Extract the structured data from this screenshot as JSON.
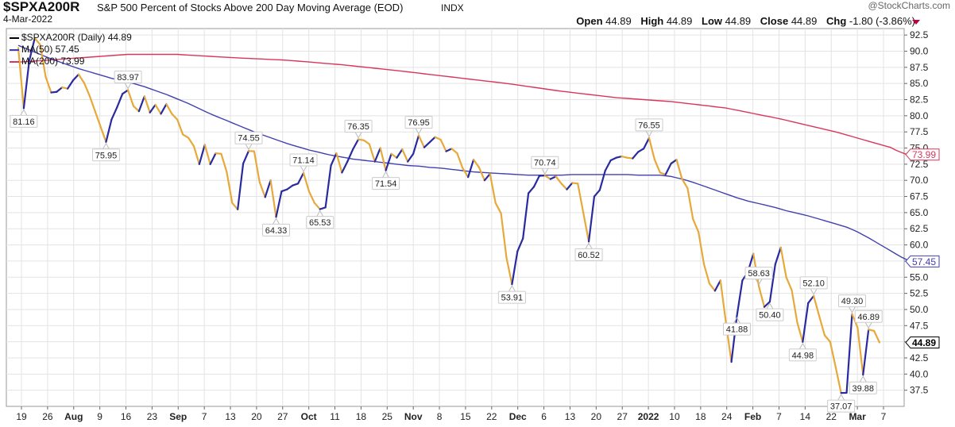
{
  "header": {
    "symbol": "$SPXA200R",
    "description": "S&P 500 Percent of Stocks Above 200 Day Moving Average (EOD)",
    "exchange": "INDX",
    "date": "4-Mar-2022",
    "watermark": "@StockCharts.com",
    "open_label": "Open",
    "open": "44.89",
    "high_label": "High",
    "high": "44.89",
    "low_label": "Low",
    "low": "44.89",
    "close_label": "Close",
    "close": "44.89",
    "chg_label": "Chg",
    "chg": "-1.80 (-3.86%)"
  },
  "legend": {
    "main": "$SPXA200R (Daily) 44.89",
    "ma50": "MA(50) 57.45",
    "ma200": "MA(200) 73.99"
  },
  "colors": {
    "up": "#2a2aa0",
    "down": "#e6a93a",
    "ma50": "#4040b0",
    "ma200": "#d8365a",
    "grid": "#e3e3e3"
  },
  "chart_data": {
    "type": "line",
    "ylim": [
      35,
      93.5
    ],
    "yticks": [
      "37.5",
      "40.0",
      "42.5",
      "45.0",
      "47.5",
      "50.0",
      "52.5",
      "55.0",
      "57.5",
      "60.0",
      "62.5",
      "65.0",
      "67.5",
      "70.0",
      "72.5",
      "75.0",
      "77.5",
      "80.0",
      "82.5",
      "85.0",
      "87.5",
      "90.0",
      "92.5"
    ],
    "x_ticks": [
      {
        "label": "19",
        "bold": false
      },
      {
        "label": "26",
        "bold": false
      },
      {
        "label": "Aug",
        "bold": true
      },
      {
        "label": "9",
        "bold": false
      },
      {
        "label": "16",
        "bold": false
      },
      {
        "label": "23",
        "bold": false
      },
      {
        "label": "Sep",
        "bold": true
      },
      {
        "label": "7",
        "bold": false
      },
      {
        "label": "13",
        "bold": false
      },
      {
        "label": "20",
        "bold": false
      },
      {
        "label": "27",
        "bold": false
      },
      {
        "label": "Oct",
        "bold": true
      },
      {
        "label": "11",
        "bold": false
      },
      {
        "label": "18",
        "bold": false
      },
      {
        "label": "25",
        "bold": false
      },
      {
        "label": "Nov",
        "bold": true
      },
      {
        "label": "8",
        "bold": false
      },
      {
        "label": "15",
        "bold": false
      },
      {
        "label": "22",
        "bold": false
      },
      {
        "label": "Dec",
        "bold": true
      },
      {
        "label": "6",
        "bold": false
      },
      {
        "label": "13",
        "bold": false
      },
      {
        "label": "20",
        "bold": false
      },
      {
        "label": "27",
        "bold": false
      },
      {
        "label": "2022",
        "bold": true
      },
      {
        "label": "10",
        "bold": false
      },
      {
        "label": "18",
        "bold": false
      },
      {
        "label": "24",
        "bold": false
      },
      {
        "label": "Feb",
        "bold": true
      },
      {
        "label": "7",
        "bold": false
      },
      {
        "label": "14",
        "bold": false
      },
      {
        "label": "22",
        "bold": false
      },
      {
        "label": "Mar",
        "bold": true
      },
      {
        "label": "7",
        "bold": false
      }
    ],
    "series": [
      {
        "name": "$SPXA200R (Daily)",
        "values": [
          90.5,
          81.16,
          88.5,
          92,
          91,
          86,
          83.6,
          83.7,
          84.4,
          84.2,
          85.5,
          86.4,
          85.1,
          83.1,
          80.7,
          78.3,
          75.95,
          79.4,
          81.3,
          83.4,
          83.97,
          81.5,
          80.7,
          83,
          80.5,
          81.7,
          80.3,
          81.8,
          80.3,
          79.4,
          77.1,
          76.6,
          75.3,
          72.5,
          75.5,
          72.5,
          74.2,
          74.1,
          71.3,
          66.5,
          65.5,
          72.6,
          74.55,
          74.5,
          69.7,
          67.4,
          70,
          64.33,
          68.3,
          68.6,
          69.2,
          69.5,
          71.14,
          68.3,
          66.5,
          65.53,
          65.8,
          72.3,
          74.2,
          71.2,
          72.9,
          74.8,
          76.35,
          76.2,
          75.6,
          72.9,
          75,
          71.54,
          74.1,
          73.5,
          74.8,
          72.9,
          74.1,
          76.95,
          75.1,
          75.9,
          76.7,
          76.3,
          74.5,
          74.9,
          74.2,
          71.9,
          70.5,
          73.2,
          72,
          70,
          71,
          66.5,
          64.9,
          58,
          53.91,
          59,
          61,
          68,
          69,
          70.7,
          70.74,
          70.2,
          70.6,
          69.5,
          68.6,
          69.6,
          69.5,
          65,
          60.52,
          67.5,
          68.5,
          71.5,
          73.1,
          73.5,
          73.7,
          73.5,
          73.4,
          74.4,
          74.9,
          76.55,
          73.2,
          71.2,
          70.9,
          72.6,
          73.2,
          70.2,
          68.8,
          64,
          62,
          57,
          54,
          52.9,
          54.5,
          48,
          41.88,
          49,
          54.5,
          55.8,
          58.63,
          53.6,
          50.4,
          51.2,
          57,
          59.6,
          55,
          53,
          48,
          44.98,
          51,
          52.1,
          49,
          46,
          45,
          41.1,
          37.07,
          37.1,
          49.3,
          47.2,
          39.88,
          46.89,
          46.69,
          44.89
        ]
      },
      {
        "name": "MA(50)",
        "values": [
          90.9,
          90.55,
          90.2,
          89.85,
          89.5,
          89.15,
          88.8,
          88.5,
          88.2,
          87.9,
          87.6,
          87.3,
          87.05,
          86.8,
          86.55,
          86.3,
          86.05,
          85.8,
          85.6,
          85.4,
          85.2,
          85,
          84.75,
          84.5,
          84.2,
          83.9,
          83.6,
          83.3,
          82.95,
          82.6,
          82.25,
          81.9,
          81.5,
          81.1,
          80.7,
          80.3,
          79.95,
          79.6,
          79.25,
          78.9,
          78.55,
          78.2,
          77.85,
          77.5,
          77.2,
          76.9,
          76.6,
          76.3,
          76,
          75.7,
          75.45,
          75.2,
          74.95,
          74.7,
          74.5,
          74.3,
          74.1,
          73.9,
          73.75,
          73.6,
          73.45,
          73.3,
          73.2,
          73.1,
          73,
          72.9,
          72.8,
          72.7,
          72.6,
          72.5,
          72.4,
          72.3,
          72.25,
          72.2,
          72.1,
          72,
          71.95,
          71.9,
          71.8,
          71.7,
          71.6,
          71.5,
          71.4,
          71.3,
          71.25,
          71.2,
          71.15,
          71.1,
          71.05,
          71,
          70.95,
          70.9,
          70.85,
          70.8,
          70.8,
          70.8,
          70.8,
          70.8,
          70.8,
          70.8,
          70.85,
          70.9,
          70.9,
          70.9,
          70.9,
          70.9,
          70.9,
          70.9,
          70.9,
          70.9,
          70.9,
          70.9,
          70.85,
          70.8,
          70.8,
          70.8,
          70.8,
          70.8,
          70.7,
          70.6,
          70.4,
          70.2,
          69.95,
          69.7,
          69.4,
          69.1,
          68.8,
          68.5,
          68.2,
          67.9,
          67.6,
          67.3,
          67.05,
          66.8,
          66.6,
          66.4,
          66.2,
          66,
          65.8,
          65.55,
          65.3,
          65.1,
          64.9,
          64.7,
          64.5,
          64.25,
          64,
          63.75,
          63.5,
          63.25,
          63,
          62.75,
          62.4,
          62,
          61.55,
          61.1,
          60.6,
          60.1,
          59.6,
          59.1,
          58.6,
          58.1,
          57.7,
          57.45
        ]
      },
      {
        "name": "MA(200)",
        "values": [
          88.3,
          88.36,
          88.42,
          88.48,
          88.54,
          88.6,
          88.66,
          88.72,
          88.78,
          88.84,
          88.9,
          88.96,
          89.02,
          89.08,
          89.14,
          89.2,
          89.26,
          89.32,
          89.38,
          89.44,
          89.5,
          89.5,
          89.5,
          89.5,
          89.5,
          89.5,
          89.5,
          89.5,
          89.5,
          89.5,
          89.45,
          89.4,
          89.35,
          89.3,
          89.25,
          89.2,
          89.15,
          89.1,
          89.05,
          89,
          88.96,
          88.92,
          88.88,
          88.84,
          88.8,
          88.76,
          88.72,
          88.68,
          88.64,
          88.6,
          88.53,
          88.46,
          88.39,
          88.32,
          88.25,
          88.18,
          88.11,
          88.04,
          87.97,
          87.9,
          87.81,
          87.72,
          87.63,
          87.54,
          87.45,
          87.36,
          87.27,
          87.18,
          87.09,
          87,
          86.9,
          86.8,
          86.7,
          86.6,
          86.5,
          86.4,
          86.3,
          86.2,
          86.1,
          86,
          85.9,
          85.8,
          85.7,
          85.6,
          85.5,
          85.4,
          85.3,
          85.2,
          85.1,
          85,
          84.88,
          84.76,
          84.64,
          84.52,
          84.4,
          84.28,
          84.16,
          84.04,
          83.92,
          83.8,
          83.7,
          83.6,
          83.5,
          83.4,
          83.3,
          83.2,
          83.1,
          83,
          82.9,
          82.8,
          82.74,
          82.68,
          82.62,
          82.56,
          82.5,
          82.44,
          82.38,
          82.32,
          82.26,
          82.2,
          82.1,
          82,
          81.9,
          81.8,
          81.7,
          81.6,
          81.5,
          81.4,
          81.3,
          81.2,
          81.03,
          80.86,
          80.69,
          80.52,
          80.35,
          80.18,
          80.01,
          79.84,
          79.67,
          79.5,
          79.3,
          79.1,
          78.9,
          78.7,
          78.5,
          78.3,
          78.1,
          77.9,
          77.7,
          77.5,
          77.26,
          77.02,
          76.78,
          76.54,
          76.3,
          76.06,
          75.82,
          75.58,
          75.34,
          75.1,
          74.66,
          74.32,
          73.99
        ]
      }
    ],
    "annotations": [
      {
        "index": 1,
        "value": "81.16",
        "pos": "below"
      },
      {
        "index": 16,
        "value": "75.95",
        "pos": "below"
      },
      {
        "index": 20,
        "value": "83.97",
        "pos": "above"
      },
      {
        "index": 42,
        "value": "74.55",
        "pos": "above"
      },
      {
        "index": 47,
        "value": "64.33",
        "pos": "below"
      },
      {
        "index": 52,
        "value": "71.14",
        "pos": "above"
      },
      {
        "index": 55,
        "value": "65.53",
        "pos": "below"
      },
      {
        "index": 62,
        "value": "76.35",
        "pos": "above"
      },
      {
        "index": 67,
        "value": "71.54",
        "pos": "below"
      },
      {
        "index": 73,
        "value": "76.95",
        "pos": "above"
      },
      {
        "index": 90,
        "value": "53.91",
        "pos": "below"
      },
      {
        "index": 96,
        "value": "70.74",
        "pos": "above"
      },
      {
        "index": 104,
        "value": "60.52",
        "pos": "below"
      },
      {
        "index": 115,
        "value": "76.55",
        "pos": "above"
      },
      {
        "index": 131,
        "value": "41.88",
        "pos": "below"
      },
      {
        "index": 135,
        "value": "58.63",
        "pos": "above"
      },
      {
        "index": 137,
        "value": "50.40",
        "pos": "below"
      },
      {
        "index": 143,
        "value": "44.98",
        "pos": "below"
      },
      {
        "index": 145,
        "value": "52.10",
        "pos": "above"
      },
      {
        "index": 150,
        "value": "37.07",
        "pos": "below"
      },
      {
        "index": 152,
        "value": "49.30",
        "pos": "above"
      },
      {
        "index": 154,
        "value": "39.88",
        "pos": "below"
      },
      {
        "index": 155,
        "value": "46.89",
        "pos": "above"
      }
    ],
    "last_value_labels": [
      {
        "series": "MA(200)",
        "value": "73.99",
        "color": "#d8365a",
        "bold": false
      },
      {
        "series": "MA(50)",
        "value": "57.45",
        "color": "#4040b0",
        "bold": false
      },
      {
        "series": "$SPXA200R (Daily)",
        "value": "44.89",
        "color": "#000000",
        "bold": true
      }
    ],
    "grid": true,
    "legend_position": "top-left"
  }
}
